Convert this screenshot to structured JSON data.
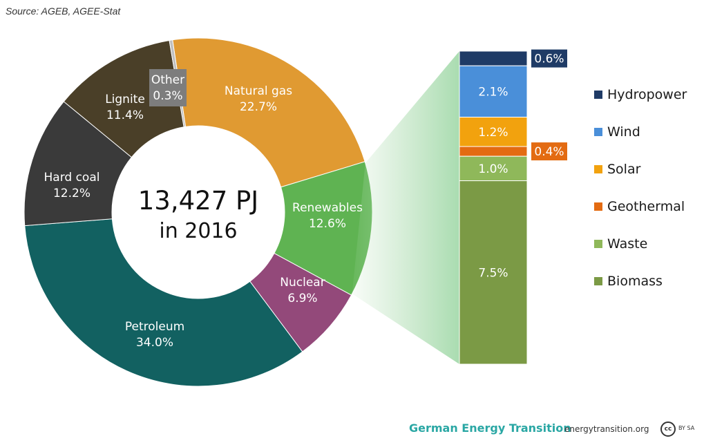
{
  "source": "Source: AGEB, AGEE-Stat",
  "chart_data": [
    {
      "type": "pie",
      "variant": "donut",
      "center_value": "13,427 PJ",
      "center_sub": "in 2016",
      "slices": [
        {
          "name": "Natural gas",
          "value": 22.7,
          "pct_label": "22.7%",
          "color": "#e09a32"
        },
        {
          "name": "Renewables",
          "value": 12.6,
          "pct_label": "12.6%",
          "color": "#5fb352"
        },
        {
          "name": "Nuclear",
          "value": 6.9,
          "pct_label": "6.9%",
          "color": "#93497a"
        },
        {
          "name": "Petroleum",
          "value": 34.0,
          "pct_label": "34.0%",
          "color": "#126161"
        },
        {
          "name": "Hard coal",
          "value": 12.2,
          "pct_label": "12.2%",
          "color": "#3a3a3a"
        },
        {
          "name": "Lignite",
          "value": 11.4,
          "pct_label": "11.4%",
          "color": "#4a3f28"
        },
        {
          "name": "Other",
          "value": 0.3,
          "pct_label": "0.3%",
          "color": "#bfbfbf"
        }
      ]
    },
    {
      "type": "bar",
      "variant": "stacked-single",
      "breakdown_of": "Renewables",
      "series": [
        {
          "name": "Hydropower",
          "value": 0.6,
          "pct_label": "0.6%",
          "color": "#1f3b66"
        },
        {
          "name": "Wind",
          "value": 2.1,
          "pct_label": "2.1%",
          "color": "#4a8fd9"
        },
        {
          "name": "Solar",
          "value": 1.2,
          "pct_label": "1.2%",
          "color": "#f2a20e"
        },
        {
          "name": "Geothermal",
          "value": 0.4,
          "pct_label": "0.4%",
          "color": "#e36b12"
        },
        {
          "name": "Waste",
          "value": 1.0,
          "pct_label": "1.0%",
          "color": "#8fb85a"
        },
        {
          "name": "Biomass",
          "value": 7.5,
          "pct_label": "7.5%",
          "color": "#7b9a45"
        }
      ],
      "legend_position": "right"
    }
  ],
  "footer": {
    "brand": "German Energy Transition",
    "url": "energytransition.org",
    "license_badge": "cc",
    "license_text": "BY SA"
  }
}
